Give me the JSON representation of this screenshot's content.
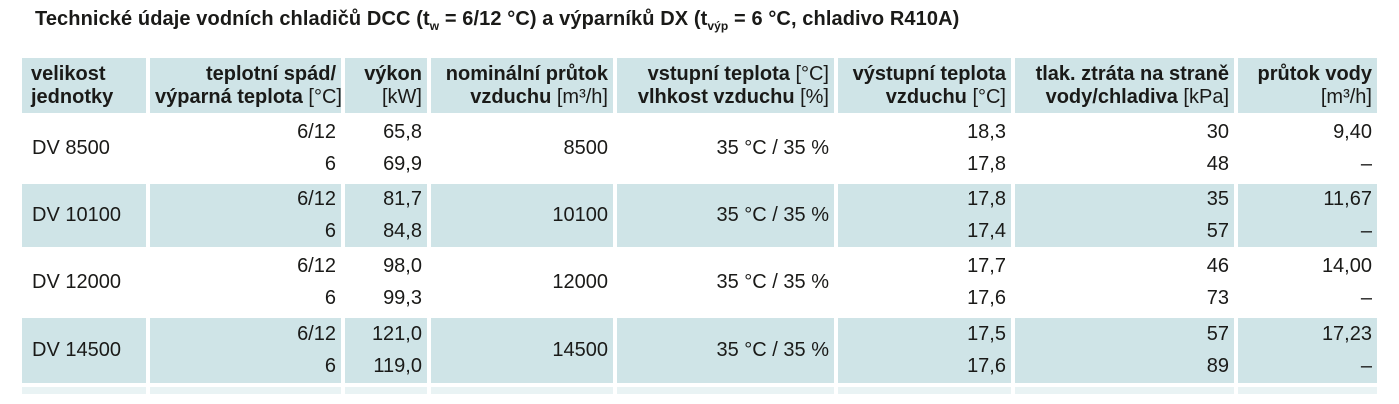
{
  "title": {
    "segments": [
      {
        "text": "Technické údaje vodních chladičů DCC (t",
        "style": "bold"
      },
      {
        "text": "w",
        "style": "sub"
      },
      {
        "text": " = 6/12 °C) a výparníků DX (t",
        "style": "bold"
      },
      {
        "text": "výp",
        "style": "sub"
      },
      {
        "text": " = 6 °C, chladivo R410A)",
        "style": "bold"
      }
    ]
  },
  "table": {
    "columns": [
      {
        "id": "unit",
        "align": "left",
        "lines": [
          [
            {
              "t": "velikost",
              "b": true
            }
          ],
          [
            {
              "t": "jednotky",
              "b": true
            }
          ]
        ]
      },
      {
        "id": "gradient",
        "align": "right",
        "lines": [
          [
            {
              "t": "teplotní spád/",
              "b": true
            }
          ],
          [
            {
              "t": "výparná teplota ",
              "b": true
            },
            {
              "t": "[°C]",
              "b": false
            }
          ]
        ]
      },
      {
        "id": "power",
        "align": "right",
        "lines": [
          [
            {
              "t": "výkon",
              "b": true
            }
          ],
          [
            {
              "t": "[kW]",
              "b": false
            }
          ]
        ]
      },
      {
        "id": "airflow",
        "align": "right",
        "lines": [
          [
            {
              "t": "nominální průtok",
              "b": true
            }
          ],
          [
            {
              "t": "vzduchu ",
              "b": true
            },
            {
              "t": "[m³/h]",
              "b": false
            }
          ]
        ]
      },
      {
        "id": "inlet",
        "align": "right",
        "lines": [
          [
            {
              "t": "vstupní teplota ",
              "b": true
            },
            {
              "t": "[°C]",
              "b": false
            }
          ],
          [
            {
              "t": "vlhkost vzduchu ",
              "b": true
            },
            {
              "t": "[%]",
              "b": false
            }
          ]
        ]
      },
      {
        "id": "outlet",
        "align": "right",
        "lines": [
          [
            {
              "t": "výstupní teplota",
              "b": true
            }
          ],
          [
            {
              "t": "vzduchu ",
              "b": true
            },
            {
              "t": "[°C]",
              "b": false
            }
          ]
        ]
      },
      {
        "id": "pressure",
        "align": "right",
        "lines": [
          [
            {
              "t": "tlak. ztráta na straně",
              "b": true
            }
          ],
          [
            {
              "t": "vody/chladiva ",
              "b": true
            },
            {
              "t": "[kPa]",
              "b": false
            }
          ]
        ]
      },
      {
        "id": "waterflow",
        "align": "right",
        "lines": [
          [
            {
              "t": "průtok vody",
              "b": true
            }
          ],
          [
            {
              "t": "[m³/h]",
              "b": false
            }
          ]
        ]
      }
    ],
    "rows": [
      {
        "unit": "DV 8500",
        "highlighted": false,
        "airflow": "8500",
        "inlet": "35 °C / 35 %",
        "sub": [
          {
            "gradient": "6/12",
            "power": "65,8",
            "outlet": "18,3",
            "pressure": "30",
            "waterflow": "9,40"
          },
          {
            "gradient": "6",
            "power": "69,9",
            "outlet": "17,8",
            "pressure": "48",
            "waterflow": "–"
          }
        ]
      },
      {
        "unit": "DV 10100",
        "highlighted": true,
        "airflow": "10100",
        "inlet": "35 °C / 35 %",
        "sub": [
          {
            "gradient": "6/12",
            "power": "81,7",
            "outlet": "17,8",
            "pressure": "35",
            "waterflow": "11,67"
          },
          {
            "gradient": "6",
            "power": "84,8",
            "outlet": "17,4",
            "pressure": "57",
            "waterflow": "–"
          }
        ]
      },
      {
        "unit": "DV 12000",
        "highlighted": false,
        "airflow": "12000",
        "inlet": "35 °C / 35 %",
        "sub": [
          {
            "gradient": "6/12",
            "power": "98,0",
            "outlet": "17,7",
            "pressure": "46",
            "waterflow": "14,00"
          },
          {
            "gradient": "6",
            "power": "99,3",
            "outlet": "17,6",
            "pressure": "73",
            "waterflow": "–"
          }
        ]
      },
      {
        "unit": "DV 14500",
        "highlighted": true,
        "airflow": "14500",
        "inlet": "35 °C / 35 %",
        "sub": [
          {
            "gradient": "6/12",
            "power": "121,0",
            "outlet": "17,5",
            "pressure": "57",
            "waterflow": "17,23"
          },
          {
            "gradient": "6",
            "power": "119,0",
            "outlet": "17,6",
            "pressure": "89",
            "waterflow": "–"
          }
        ]
      }
    ]
  },
  "colors": {
    "header_bg": "#cfe4e7",
    "row_highlight_bg": "#cfe4e7",
    "row_plain_bg": "#ffffff",
    "partial_row_bg": "#e9f3f4",
    "text": "#1a1a18",
    "page_bg": "#ffffff"
  }
}
